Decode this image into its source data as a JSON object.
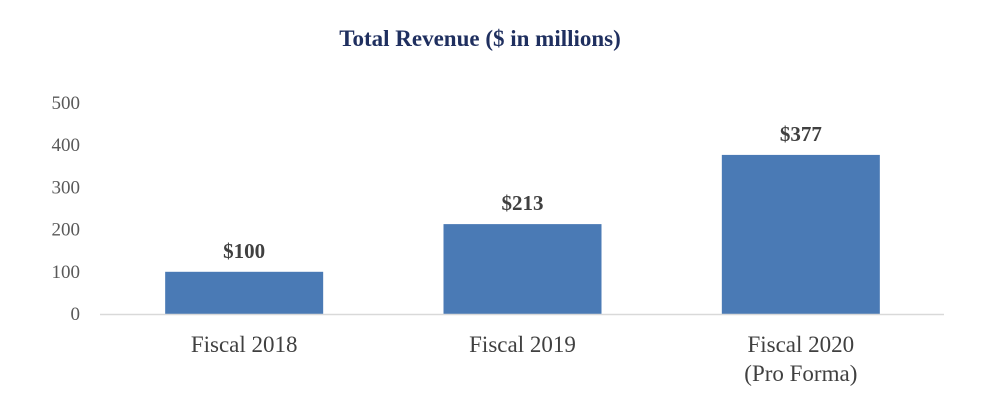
{
  "chart_data": {
    "type": "bar",
    "title": "Total Revenue ($ in millions)",
    "xlabel": "",
    "ylabel": "",
    "categories": [
      [
        "Fiscal 2018"
      ],
      [
        "Fiscal 2019"
      ],
      [
        "Fiscal 2020",
        "(Pro Forma)"
      ]
    ],
    "values": [
      100,
      213,
      377
    ],
    "data_labels": [
      "$100",
      "$213",
      "$377"
    ],
    "ylim": [
      0,
      500
    ],
    "yticks": [
      0,
      100,
      200,
      300,
      400,
      500
    ],
    "grid": false,
    "legend": "none",
    "colors": {
      "bar": "#4a7ab5",
      "title": "#1f2f5f",
      "axis": "#d9d9d9"
    }
  }
}
